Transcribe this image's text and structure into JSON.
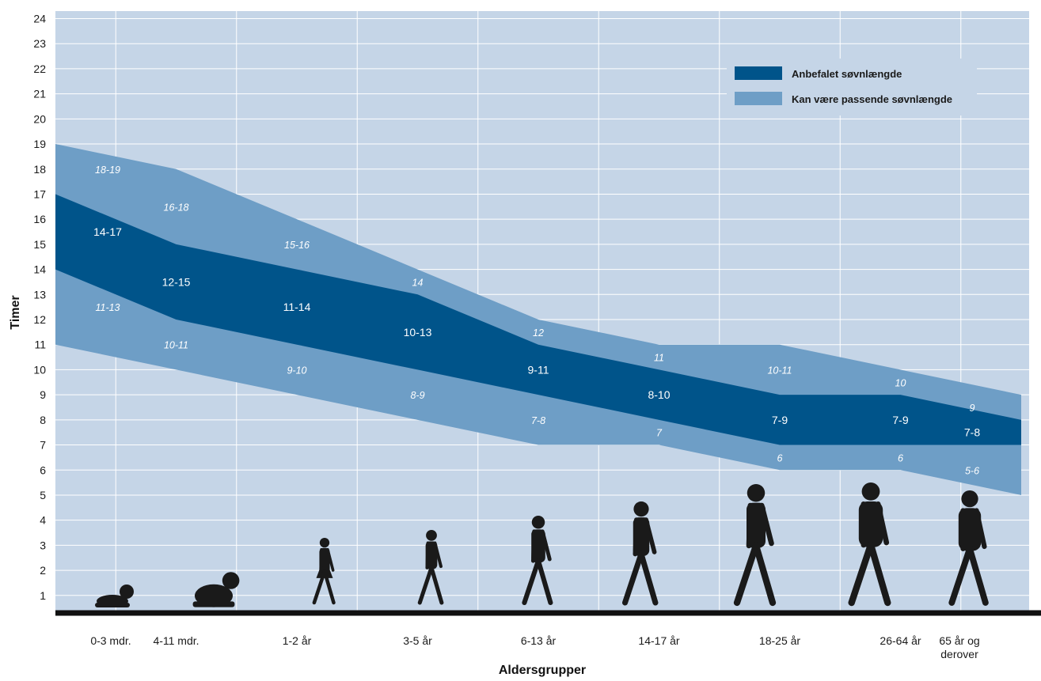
{
  "chart_data": {
    "type": "area",
    "xlabel": "Aldersgrupper",
    "ylabel": "Timer",
    "ylim": [
      0.3,
      24.3
    ],
    "yticks": [
      1,
      2,
      3,
      4,
      5,
      6,
      7,
      8,
      9,
      10,
      11,
      12,
      13,
      14,
      15,
      16,
      17,
      18,
      19,
      20,
      21,
      22,
      23,
      24
    ],
    "grid": true,
    "legend_position": "top-right",
    "categories": [
      "0-3 mdr.",
      "4-11 mdr.",
      "1-2 år",
      "3-5 år",
      "6-13 år",
      "14-17 år",
      "18-25 år",
      "26-64 år",
      "65 år og derover"
    ],
    "series": [
      {
        "name": "Anbefalet søvnlængde",
        "color": "#00548a",
        "lower": [
          14,
          12,
          11,
          10,
          9,
          8,
          7,
          7,
          7
        ],
        "upper": [
          17,
          15,
          14,
          13,
          11,
          10,
          9,
          9,
          8
        ],
        "labels": [
          "14-17",
          "12-15",
          "11-14",
          "10-13",
          "9-11",
          "8-10",
          "7-9",
          "7-9",
          "7-8"
        ]
      },
      {
        "name": "Kan være passende søvnlængde",
        "color": "#6e9ec6",
        "lower": [
          11,
          10,
          9,
          8,
          7,
          7,
          6,
          6,
          5
        ],
        "upper": [
          19,
          18,
          16,
          14,
          12,
          11,
          11,
          10,
          9
        ],
        "labels_upper": [
          "18-19",
          "16-18",
          "15-16",
          "14",
          "12",
          "11",
          "10-11",
          "10",
          "9"
        ],
        "labels_lower": [
          "11-13",
          "10-11",
          "9-10",
          "8-9",
          "7-8",
          "7",
          "6",
          "6",
          "5-6"
        ]
      }
    ]
  },
  "colors": {
    "background": "#c5d5e7",
    "grid": "#ffffff",
    "baseline": "#111111",
    "recommended": "#00548a",
    "may_be_appropriate": "#6e9ec6"
  },
  "icons": [
    "crawling-baby-icon",
    "crawling-infant-icon",
    "toddler-icon",
    "child-icon",
    "girl-icon",
    "boy-icon",
    "woman-icon",
    "adult-woman-icon",
    "senior-man-icon"
  ]
}
